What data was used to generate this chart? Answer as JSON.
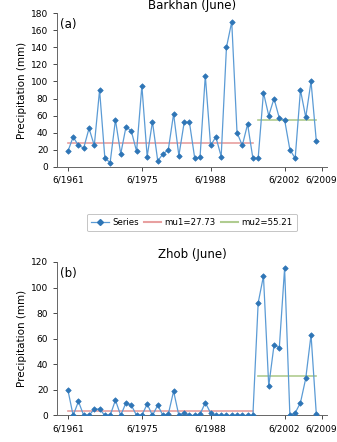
{
  "barkhan": {
    "title": "Barkhan (June)",
    "label": "(a)",
    "years": [
      1961,
      1962,
      1963,
      1964,
      1965,
      1966,
      1967,
      1968,
      1969,
      1970,
      1971,
      1972,
      1973,
      1974,
      1975,
      1976,
      1977,
      1978,
      1979,
      1980,
      1981,
      1982,
      1983,
      1984,
      1985,
      1986,
      1987,
      1988,
      1989,
      1990,
      1991,
      1992,
      1993,
      1994,
      1995,
      1996,
      1997,
      1998,
      1999,
      2000,
      2001,
      2002,
      2003,
      2004,
      2005,
      2006,
      2007,
      2008
    ],
    "values": [
      18,
      35,
      25,
      22,
      45,
      25,
      90,
      10,
      5,
      55,
      15,
      47,
      42,
      18,
      95,
      12,
      53,
      7,
      15,
      20,
      62,
      13,
      52,
      52,
      10,
      11,
      107,
      25,
      35,
      12,
      140,
      170,
      40,
      25,
      50,
      10,
      10,
      87,
      60,
      80,
      57,
      55,
      20,
      10,
      90,
      58,
      100,
      30
    ],
    "mu1": 27.73,
    "mu2": 55.21,
    "break_year": 1996,
    "ylim": [
      0,
      180
    ],
    "yticks": [
      0,
      20,
      40,
      60,
      80,
      100,
      120,
      140,
      160,
      180
    ],
    "ylabel": "Precipitation (mm)"
  },
  "zhob": {
    "title": "Zhob (June)",
    "label": "(b)",
    "years": [
      1961,
      1962,
      1963,
      1964,
      1965,
      1966,
      1967,
      1968,
      1969,
      1970,
      1971,
      1972,
      1973,
      1974,
      1975,
      1976,
      1977,
      1978,
      1979,
      1980,
      1981,
      1982,
      1983,
      1984,
      1985,
      1986,
      1987,
      1988,
      1989,
      1990,
      1991,
      1992,
      1993,
      1994,
      1995,
      1996,
      1997,
      1998,
      1999,
      2000,
      2001,
      2002,
      2003,
      2004,
      2005,
      2006,
      2007,
      2008
    ],
    "values": [
      20,
      0,
      11,
      0,
      0,
      5,
      5,
      0,
      0,
      12,
      0,
      10,
      8,
      0,
      0,
      9,
      0,
      8,
      0,
      1,
      19,
      0,
      2,
      0,
      0,
      1,
      10,
      2,
      0,
      0,
      0,
      0,
      0,
      0,
      0,
      0,
      88,
      109,
      23,
      55,
      53,
      115,
      0,
      2,
      10,
      29,
      63,
      1
    ],
    "mu1": 3.59,
    "mu2": 30.75,
    "break_year": 1996,
    "ylim": [
      0,
      120
    ],
    "yticks": [
      0,
      20,
      40,
      60,
      80,
      100,
      120
    ],
    "ylabel": "Precipitation (mm)"
  },
  "line_color": "#5b9bd5",
  "marker_color": "#2e75b6",
  "mu1_color": "#e8a0a0",
  "mu2_color": "#b0cc90",
  "xtick_labels": [
    "6/1961",
    "6/1975",
    "6/1988",
    "6/2002",
    "6/2009"
  ],
  "xtick_years": [
    1961,
    1975,
    1988,
    2002,
    2009
  ],
  "xlim": [
    1959,
    2010
  ],
  "bg_color": "#ffffff"
}
